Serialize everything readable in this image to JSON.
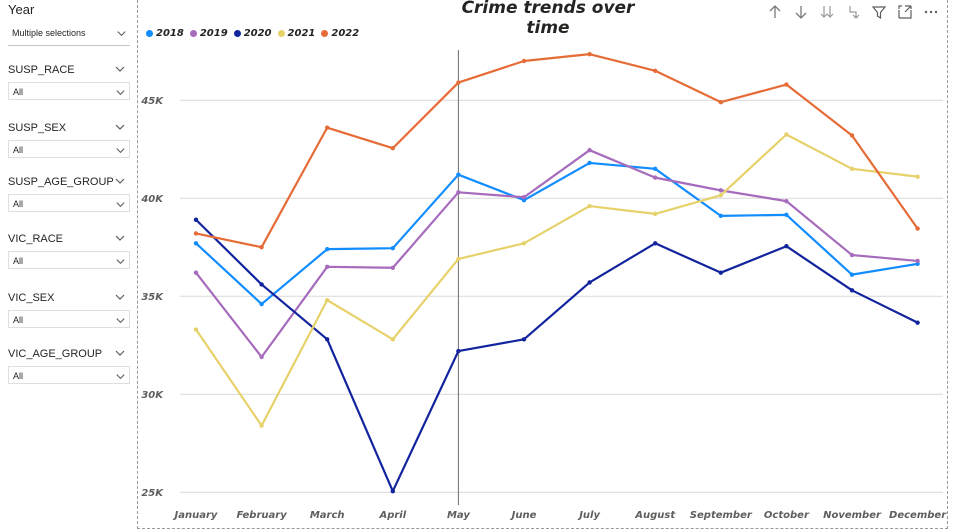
{
  "slicers": [
    {
      "title": "Year",
      "value": "Multiple selections",
      "big": true
    },
    {
      "title": "SUSP_RACE",
      "value": "All"
    },
    {
      "title": "SUSP_SEX",
      "value": "All"
    },
    {
      "title": "SUSP_AGE_GROUP",
      "value": "All"
    },
    {
      "title": "VIC_RACE",
      "value": "All"
    },
    {
      "title": "VIC_SEX",
      "value": "All"
    },
    {
      "title": "VIC_AGE_GROUP",
      "value": "All"
    }
  ],
  "toolbar_icons": [
    "arrow-up-icon",
    "arrow-down-icon",
    "drill-down-all-icon",
    "expand-hierarchy-icon",
    "filter-icon",
    "focus-mode-icon",
    "more-options-icon"
  ],
  "chart_data": {
    "type": "line",
    "title": "Crime trends over time",
    "xlabel": "",
    "ylabel": "",
    "categories": [
      "January",
      "February",
      "March",
      "April",
      "May",
      "June",
      "July",
      "August",
      "September",
      "October",
      "November",
      "December"
    ],
    "y_ticks": [
      "25K",
      "30K",
      "35K",
      "40K",
      "45K"
    ],
    "y_tick_values": [
      25000,
      30000,
      35000,
      40000,
      45000
    ],
    "ylim": [
      24500,
      49500
    ],
    "grid": true,
    "legend_position": "top-left",
    "crosshair_category": "May",
    "series": [
      {
        "name": "2018",
        "color": "#118DFF",
        "values": [
          37700,
          34600,
          37400,
          37450,
          41200,
          39900,
          41800,
          41500,
          39100,
          39150,
          36100,
          36650
        ]
      },
      {
        "name": "2019",
        "color": "#A66BBC",
        "values": [
          36200,
          31900,
          36500,
          36450,
          40300,
          40050,
          42450,
          41050,
          40400,
          39850,
          37100,
          36800
        ]
      },
      {
        "name": "2020",
        "color": "#12239E",
        "values": [
          38900,
          35600,
          32800,
          25050,
          32200,
          32800,
          35700,
          37700,
          36200,
          37550,
          35300,
          33650
        ]
      },
      {
        "name": "2021",
        "color": "#E6D16A",
        "values": [
          33300,
          28400,
          34800,
          32800,
          36900,
          37700,
          39600,
          39200,
          40150,
          43250,
          41500,
          41100
        ]
      },
      {
        "name": "2022",
        "color": "#E66C37",
        "values": [
          38200,
          37500,
          43600,
          42550,
          45900,
          47000,
          47350,
          46500,
          44900,
          45800,
          43200,
          38450
        ]
      }
    ]
  }
}
